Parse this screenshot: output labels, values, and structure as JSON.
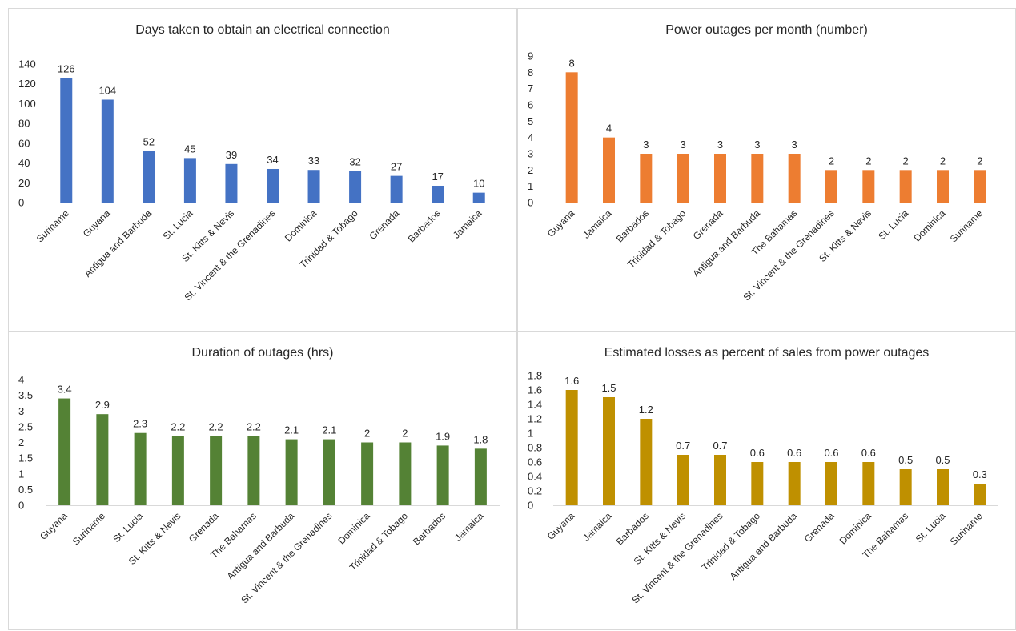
{
  "chart_data": [
    {
      "type": "bar",
      "title": "Days taken to obtain an electrical connection",
      "categories": [
        "Suriname",
        "Guyana",
        "Antigua and Barbuda",
        "St. Lucia",
        "St. Kitts & Nevis",
        "St. Vincent & the Grenadines",
        "Dominica",
        "Trinidad & Tobago",
        "Grenada",
        "Barbados",
        "Jamaica"
      ],
      "values": [
        126,
        104,
        52,
        45,
        39,
        34,
        33,
        32,
        27,
        17,
        10
      ],
      "data_labels": [
        "126",
        "104",
        "52",
        "45",
        "39",
        "34",
        "33",
        "32",
        "27",
        "17",
        "10"
      ],
      "yticks": [
        "0",
        "20",
        "40",
        "60",
        "80",
        "100",
        "120",
        "140"
      ],
      "ylim": [
        0,
        140
      ],
      "color": "#4472c4",
      "grid": false,
      "xlabel": "",
      "ylabel": ""
    },
    {
      "type": "bar",
      "title": "Power outages per month (number)",
      "categories": [
        "Guyana",
        "Jamaica",
        "Barbados",
        "Trinidad & Tobago",
        "Grenada",
        "Antigua and Barbuda",
        "The Bahamas",
        "St. Vincent & the Grenadines",
        "St. Kitts & Nevis",
        "St. Lucia",
        "Dominica",
        "Suriname"
      ],
      "values": [
        8,
        4,
        3,
        3,
        3,
        3,
        3,
        2,
        2,
        2,
        2,
        2
      ],
      "data_labels": [
        "8",
        "4",
        "3",
        "3",
        "3",
        "3",
        "3",
        "2",
        "2",
        "2",
        "2",
        "2"
      ],
      "yticks": [
        "0",
        "1",
        "2",
        "3",
        "4",
        "5",
        "6",
        "7",
        "8",
        "9"
      ],
      "ylim": [
        0,
        9
      ],
      "color": "#ed7d31",
      "grid": false,
      "xlabel": "",
      "ylabel": ""
    },
    {
      "type": "bar",
      "title": "Duration of outages (hrs)",
      "categories": [
        "Guyana",
        "Suriname",
        "St. Lucia",
        "St. Kitts & Nevis",
        "Grenada",
        "The Bahamas",
        "Antigua and Barbuda",
        "St. Vincent & the Grenadines",
        "Dominica",
        "Trinidad & Tobago",
        "Barbados",
        "Jamaica"
      ],
      "values": [
        3.4,
        2.9,
        2.3,
        2.2,
        2.2,
        2.2,
        2.1,
        2.1,
        2,
        2,
        1.9,
        1.8
      ],
      "data_labels": [
        "3.4",
        "2.9",
        "2.3",
        "2.2",
        "2.2",
        "2.2",
        "2.1",
        "2.1",
        "2",
        "2",
        "1.9",
        "1.8"
      ],
      "yticks": [
        "0",
        "0.5",
        "1",
        "1.5",
        "2",
        "2.5",
        "3",
        "3.5",
        "4"
      ],
      "ylim": [
        0,
        4
      ],
      "color": "#548235",
      "grid": false,
      "xlabel": "",
      "ylabel": ""
    },
    {
      "type": "bar",
      "title": "Estimated losses as percent of sales from power outages",
      "categories": [
        "Guyana",
        "Jamaica",
        "Barbados",
        "St. Kitts & Nevis",
        "St. Vincent & the Grenadines",
        "Trinidad & Tobago",
        "Antigua and Barbuda",
        "Grenada",
        "Dominica",
        "The Bahamas",
        "St. Lucia",
        "Suriname"
      ],
      "values": [
        1.6,
        1.5,
        1.2,
        0.7,
        0.7,
        0.6,
        0.6,
        0.6,
        0.6,
        0.5,
        0.5,
        0.3
      ],
      "data_labels": [
        "1.6",
        "1.5",
        "1.2",
        "0.7",
        "0.7",
        "0.6",
        "0.6",
        "0.6",
        "0.6",
        "0.5",
        "0.5",
        "0.3"
      ],
      "yticks": [
        "0",
        "0.2",
        "0.4",
        "0.6",
        "0.8",
        "1",
        "1.2",
        "1.4",
        "1.6",
        "1.8"
      ],
      "ylim": [
        0,
        1.8
      ],
      "color": "#bf9000",
      "grid": false,
      "xlabel": "",
      "ylabel": ""
    }
  ]
}
